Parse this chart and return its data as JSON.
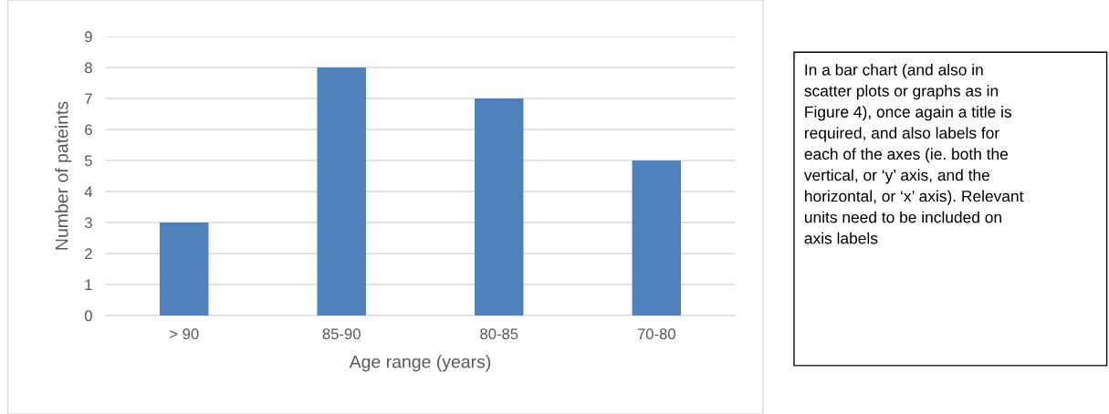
{
  "chart_data": {
    "type": "bar",
    "xlabel": "Age range (years)",
    "ylabel": "Number of pateints",
    "categories": [
      "> 90",
      "85-90",
      "80-85",
      "70-80"
    ],
    "values": [
      3,
      8,
      7,
      5
    ],
    "color": "#4f81bd",
    "ylim": [
      0,
      9
    ],
    "yticks": [
      0,
      1,
      2,
      3,
      4,
      5,
      6,
      7,
      8,
      9
    ],
    "grid": "y",
    "annotations": [
      "In a bar chart (and also in\nscatter plots or graphs as in\nFigure 4), once again a title is\nrequired, and also labels for\neach of the axes (ie. both the\nvertical, or ‘y’ axis, and the\nhorizontal, or ‘x’ axis). Relevant\nunits need to be included on\naxis labels"
    ]
  }
}
